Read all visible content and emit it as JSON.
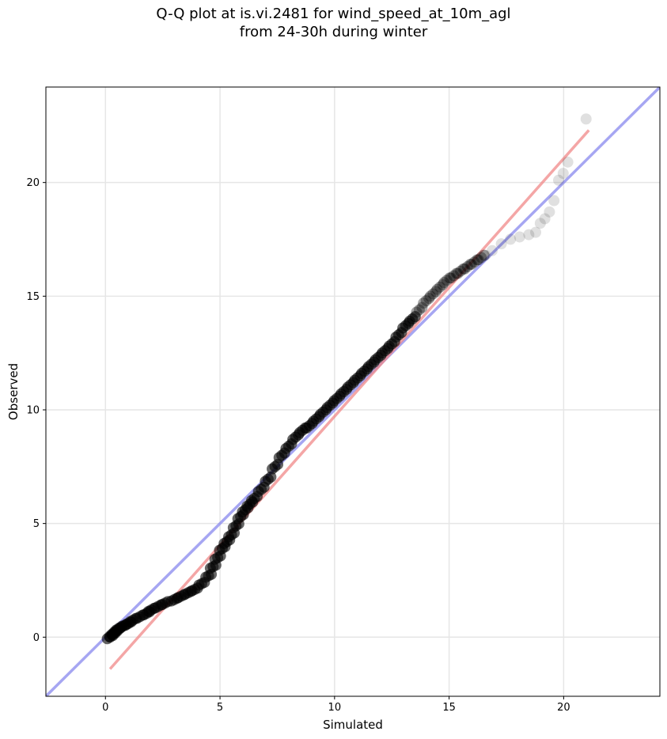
{
  "chart_data": {
    "type": "scatter",
    "title_line1": "Q-Q plot at is.vi.2481 for wind_speed_at_10m_agl",
    "title_line2": "from 24-30h during winter",
    "xlabel": "Simulated",
    "ylabel": "Observed",
    "xlim": [
      -2.6,
      24.2
    ],
    "ylim": [
      -2.6,
      24.2
    ],
    "xticks": [
      0,
      5,
      10,
      15,
      20
    ],
    "yticks": [
      0,
      5,
      10,
      15,
      20
    ],
    "grid": true,
    "colors": {
      "points": "#000000",
      "identity_line": "#8888ee",
      "fit_line": "#f08888"
    },
    "reference_lines": [
      {
        "type": "identity",
        "x": [
          -2.6,
          24.2
        ],
        "y": [
          -2.6,
          24.2
        ]
      },
      {
        "type": "fit",
        "x": [
          0.2,
          21.1
        ],
        "y": [
          -1.4,
          22.3
        ]
      }
    ],
    "series": [
      {
        "x": [
          0.2,
          0.3,
          0.4,
          0.5,
          0.6,
          0.8,
          1.0,
          1.2,
          1.5,
          1.8,
          2.0,
          2.3,
          2.6,
          3.0,
          3.3,
          3.6,
          3.9,
          4.2,
          4.5,
          4.7,
          4.9,
          5.1,
          5.3,
          5.5,
          5.7,
          5.9,
          6.1,
          6.3,
          6.5,
          6.8,
          7.1,
          7.4,
          7.7,
          8.0,
          8.3,
          8.6,
          8.9,
          9.2,
          9.5,
          9.8,
          10.1,
          10.4,
          10.7,
          11.0,
          11.3,
          11.6,
          11.9,
          12.2,
          12.5,
          12.8,
          13.1,
          13.4,
          13.7,
          14.0,
          14.3,
          14.6,
          14.9,
          15.2,
          15.5,
          15.8,
          16.1,
          16.4,
          16.7,
          17.0,
          17.4,
          17.8,
          18.2,
          18.6,
          18.9,
          19.1,
          19.3,
          19.5,
          19.7,
          19.9,
          20.1,
          20.3,
          21.1
        ],
        "y": [
          0.0,
          0.1,
          0.2,
          0.3,
          0.4,
          0.5,
          0.6,
          0.75,
          0.9,
          1.05,
          1.2,
          1.35,
          1.5,
          1.65,
          1.8,
          1.95,
          2.1,
          2.35,
          2.7,
          3.1,
          3.5,
          3.9,
          4.2,
          4.5,
          4.9,
          5.3,
          5.6,
          5.85,
          6.1,
          6.5,
          6.95,
          7.5,
          8.0,
          8.4,
          8.8,
          9.1,
          9.3,
          9.6,
          9.9,
          10.2,
          10.5,
          10.8,
          11.1,
          11.4,
          11.7,
          12.0,
          12.3,
          12.6,
          12.9,
          13.3,
          13.7,
          14.0,
          14.4,
          14.8,
          15.1,
          15.4,
          15.7,
          15.9,
          16.1,
          16.3,
          16.5,
          16.7,
          16.9,
          17.1,
          17.4,
          17.6,
          17.7,
          17.8,
          17.9,
          18.3,
          18.5,
          18.8,
          19.3,
          20.2,
          20.5,
          21.0,
          22.9
        ]
      }
    ]
  }
}
